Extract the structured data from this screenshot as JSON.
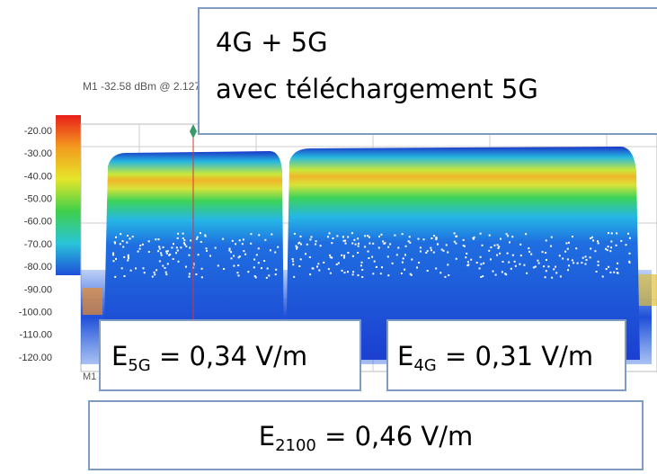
{
  "analyzer": {
    "marker_readout": "M1   -32.58 dBm @ 2.127",
    "marker_label": "M1",
    "marker_label_bottom": "M1",
    "y_labels": [
      "-20.00",
      "-30.00",
      "-40.00",
      "-50.00",
      "-60.00",
      "-70.00",
      "-80.00",
      "-90.00",
      "-100.00",
      "-110.00",
      "-120.00"
    ]
  },
  "title_box": {
    "line1": "4G + 5G",
    "line2": "avec téléchargement 5G"
  },
  "field_5g": {
    "symbol": "E",
    "subscript": "5G",
    "value": " = 0,34 V/m"
  },
  "field_4g": {
    "symbol": "E",
    "subscript": "4G",
    "value": " = 0,31 V/m"
  },
  "field_2100": {
    "symbol": "E",
    "subscript": "2100",
    "value": " = 0,46 V/m"
  }
}
